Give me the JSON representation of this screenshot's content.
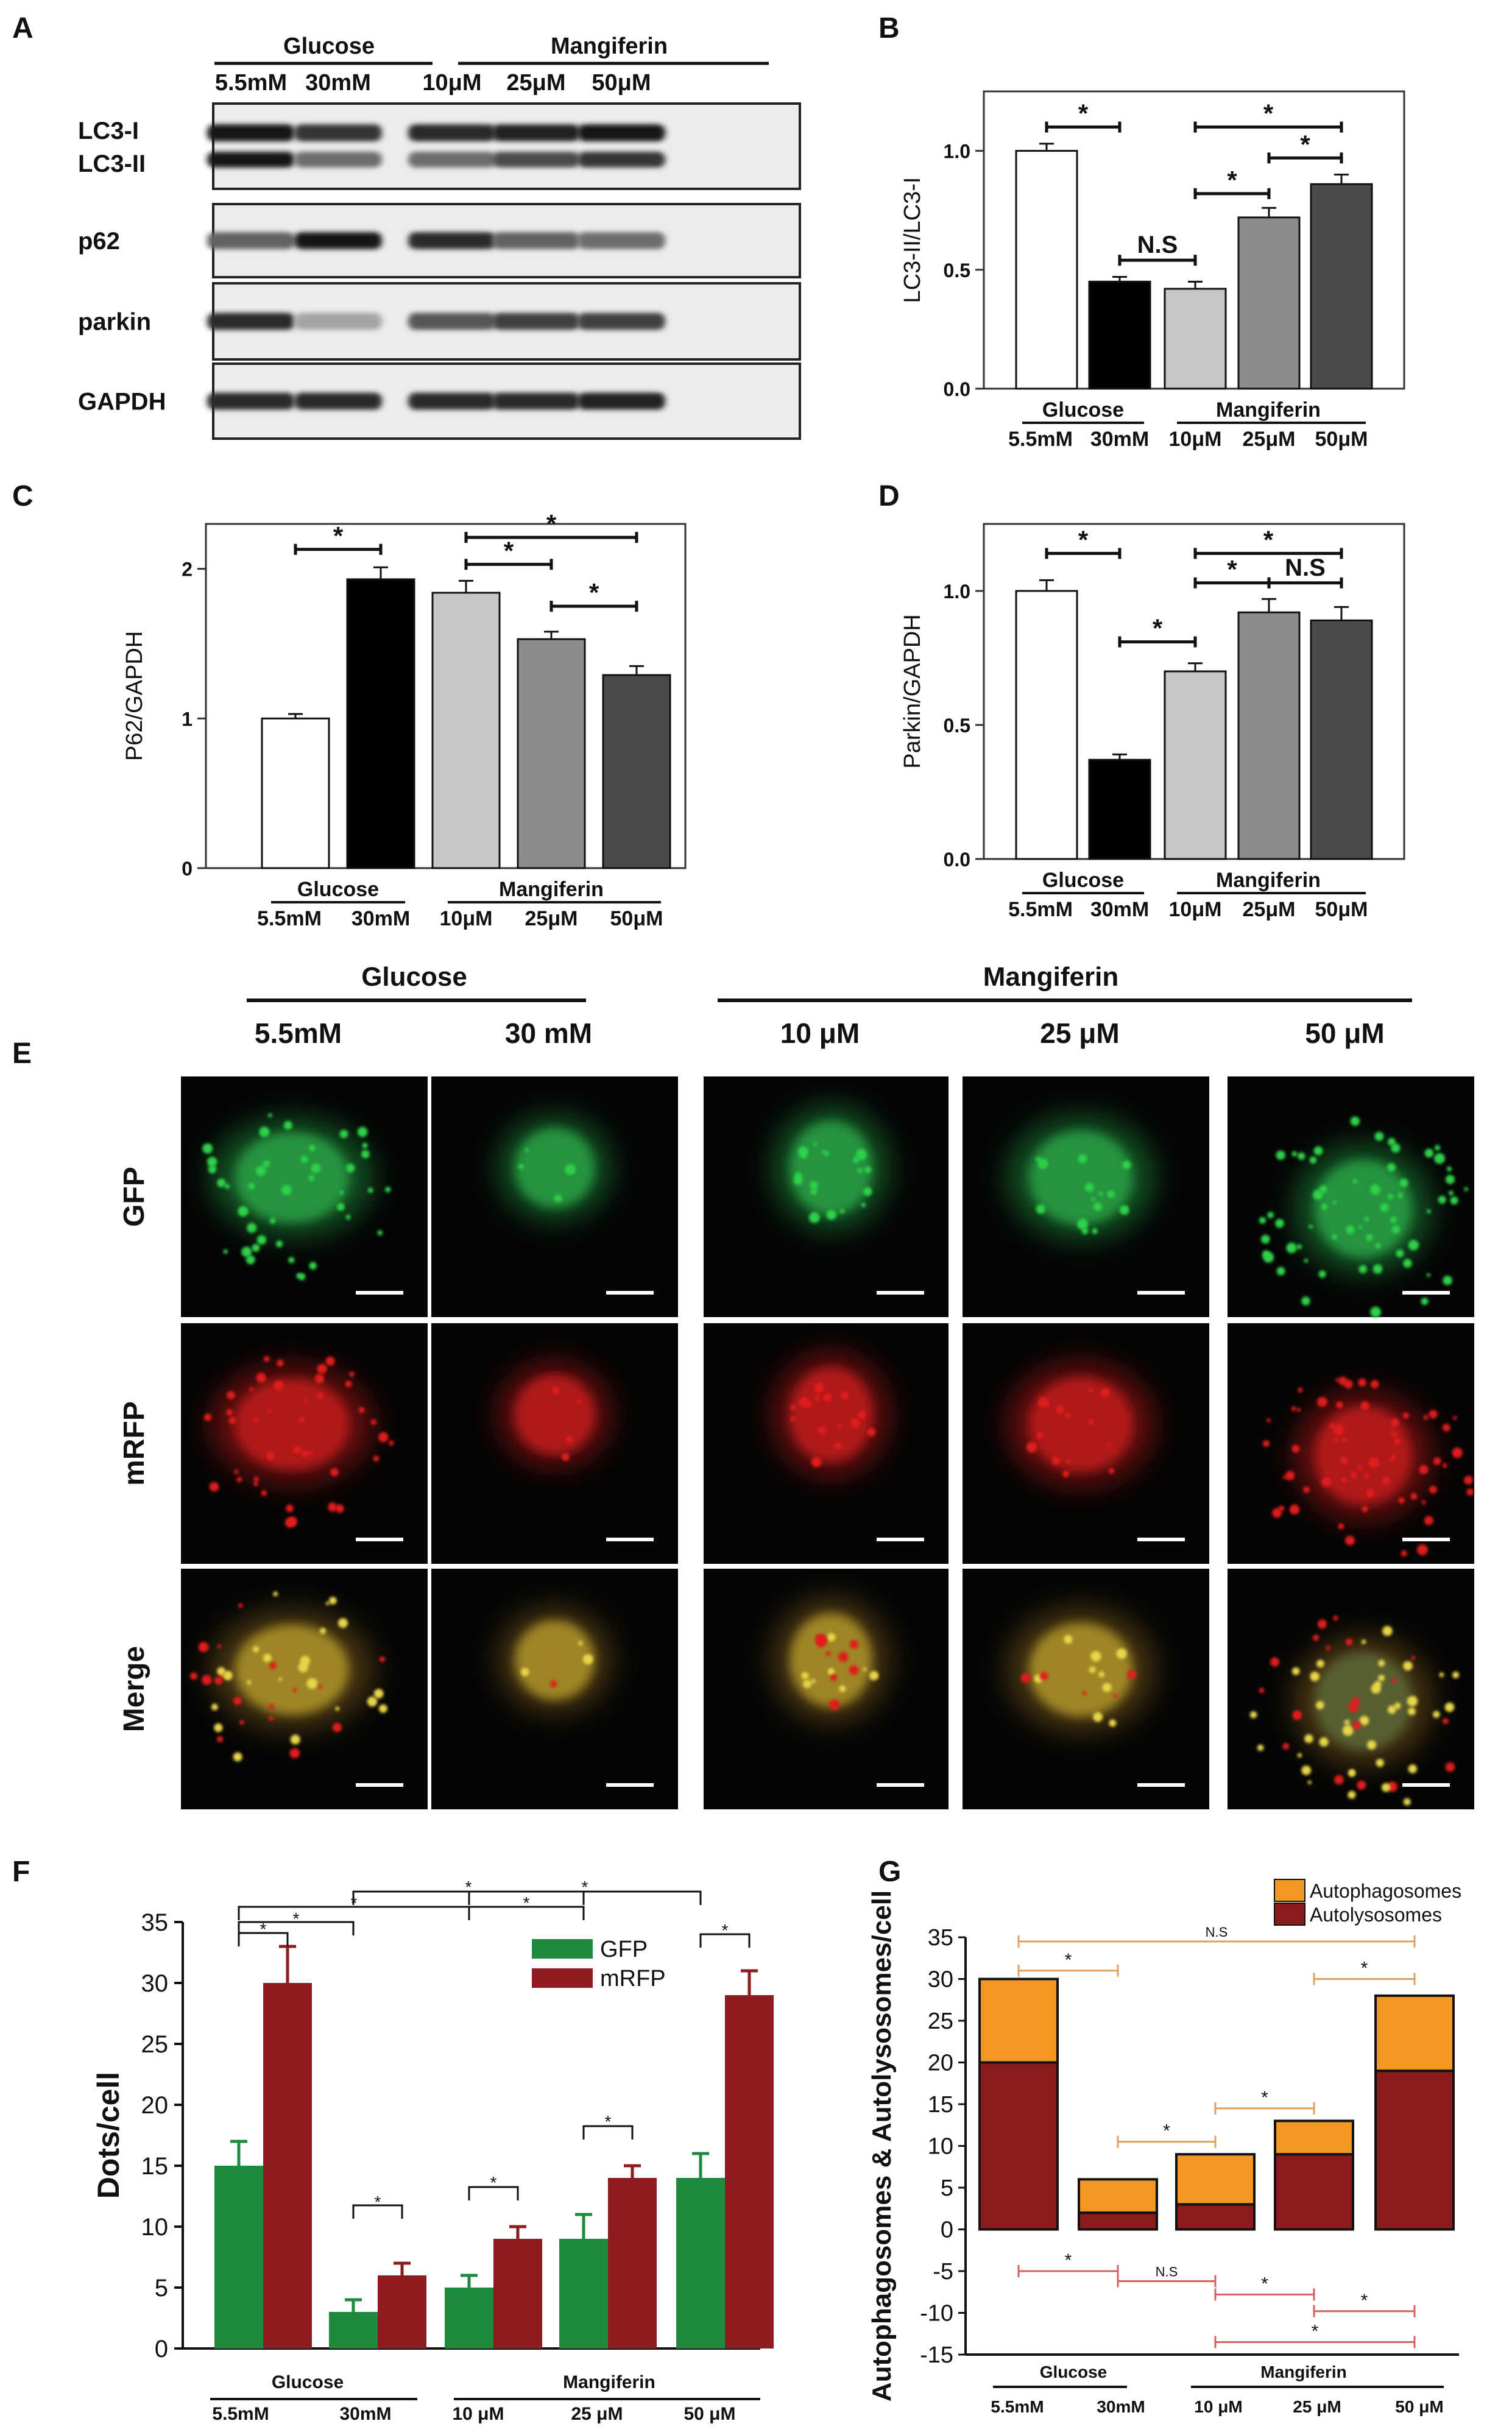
{
  "panel_labels": [
    "A",
    "B",
    "C",
    "D",
    "E",
    "F",
    "G"
  ],
  "colors": {
    "green_channel": "#2fd14a",
    "red_channel": "#e01e1e",
    "merge_yellow": "#e8d64a",
    "f_gfp": "#1e8a3e",
    "f_mrfp": "#8e1b1f",
    "g_autophagosome": "#f29624",
    "g_autolysosome": "#8a1a1c",
    "g_bracket_upper": "#e2a060",
    "g_bracket_lower": "#d46060",
    "black_bar": "#000000",
    "white_bar": "#ffffff"
  },
  "panel_a": {
    "group_glucose": "Glucose",
    "group_mangiferin": "Mangiferin",
    "lanes": [
      "5.5mM",
      "30mM",
      "10μM",
      "25μM",
      "50μM"
    ],
    "blots": [
      {
        "key": "lc3",
        "label_top": "LC3-I",
        "label_bottom": "LC3-II",
        "intensity": [
          0.95,
          0.8,
          0.85,
          0.9,
          0.95
        ],
        "lower_intensity": [
          0.95,
          0.55,
          0.55,
          0.7,
          0.8
        ]
      },
      {
        "key": "p62",
        "label_top": "p62",
        "intensity": [
          0.6,
          0.95,
          0.85,
          0.6,
          0.55
        ]
      },
      {
        "key": "parkin",
        "label_top": "parkin",
        "intensity": [
          0.85,
          0.3,
          0.65,
          0.75,
          0.75
        ]
      },
      {
        "key": "gapdh",
        "label_top": "GAPDH",
        "intensity": [
          0.85,
          0.85,
          0.85,
          0.85,
          0.9
        ]
      }
    ]
  },
  "panel_e": {
    "group_glucose": "Glucose",
    "group_mangiferin": "Mangiferin",
    "columns": [
      "5.5mM",
      "30 mM",
      "10 μM",
      "25 μM",
      "50 μM"
    ],
    "rows": [
      "GFP",
      "mRFP",
      "Merge"
    ]
  },
  "chart_data": [
    {
      "id": "B",
      "type": "bar",
      "ylabel": "LC3-II/LC3-I",
      "ylim": [
        0,
        1.25
      ],
      "yticks": [
        "0.0",
        "0.5",
        "1.0"
      ],
      "categories": [
        "5.5mM",
        "30mM",
        "10μM",
        "25μM",
        "50μM"
      ],
      "group_labels": [
        "Glucose",
        "Mangiferin"
      ],
      "values": [
        1.0,
        0.45,
        0.42,
        0.72,
        0.86
      ],
      "errors": [
        0.03,
        0.02,
        0.03,
        0.04,
        0.04
      ],
      "bar_colors": [
        "#ffffff",
        "#000000",
        "#c7c7c7",
        "#8c8c8c",
        "#4a4a4a"
      ],
      "significance": [
        {
          "from": 0,
          "to": 1,
          "y": 1.1,
          "text": "*"
        },
        {
          "from": 1,
          "to": 2,
          "y": 0.54,
          "text": "N.S"
        },
        {
          "from": 2,
          "to": 3,
          "y": 0.82,
          "text": "*"
        },
        {
          "from": 3,
          "to": 4,
          "y": 0.97,
          "text": "*"
        },
        {
          "from": 2,
          "to": 4,
          "y": 1.1,
          "text": "*"
        }
      ]
    },
    {
      "id": "C",
      "type": "bar",
      "ylabel": "P62/GAPDH",
      "ylim": [
        0,
        2.3
      ],
      "yticks": [
        "0",
        "1",
        "2"
      ],
      "categories": [
        "5.5mM",
        "30mM",
        "10μM",
        "25μM",
        "50μM"
      ],
      "group_labels": [
        "Glucose",
        "Mangiferin"
      ],
      "values": [
        1.0,
        1.93,
        1.84,
        1.53,
        1.29
      ],
      "errors": [
        0.03,
        0.08,
        0.08,
        0.05,
        0.06
      ],
      "bar_colors": [
        "#ffffff",
        "#000000",
        "#c7c7c7",
        "#8c8c8c",
        "#4a4a4a"
      ],
      "significance": [
        {
          "from": 0,
          "to": 1,
          "y": 2.13,
          "text": "*"
        },
        {
          "from": 2,
          "to": 3,
          "y": 2.03,
          "text": "*"
        },
        {
          "from": 2,
          "to": 4,
          "y": 2.21,
          "text": "*"
        },
        {
          "from": 3,
          "to": 4,
          "y": 1.75,
          "text": "*"
        }
      ]
    },
    {
      "id": "D",
      "type": "bar",
      "ylabel": "Parkin/GAPDH",
      "ylim": [
        0,
        1.25
      ],
      "yticks": [
        "0.0",
        "0.5",
        "1.0"
      ],
      "categories": [
        "5.5mM",
        "30mM",
        "10μM",
        "25μM",
        "50μM"
      ],
      "group_labels": [
        "Glucose",
        "Mangiferin"
      ],
      "values": [
        1.0,
        0.37,
        0.7,
        0.92,
        0.89
      ],
      "errors": [
        0.04,
        0.02,
        0.03,
        0.05,
        0.05
      ],
      "bar_colors": [
        "#ffffff",
        "#000000",
        "#c7c7c7",
        "#8c8c8c",
        "#4a4a4a"
      ],
      "significance": [
        {
          "from": 0,
          "to": 1,
          "y": 1.14,
          "text": "*"
        },
        {
          "from": 1,
          "to": 2,
          "y": 0.81,
          "text": "*"
        },
        {
          "from": 2,
          "to": 3,
          "y": 1.03,
          "text": "*"
        },
        {
          "from": 3,
          "to": 4,
          "y": 1.03,
          "text": "N.S"
        },
        {
          "from": 2,
          "to": 4,
          "y": 1.14,
          "text": "*"
        }
      ]
    },
    {
      "id": "F",
      "type": "bar",
      "ylabel": "Dots/cell",
      "ylim": [
        0,
        35
      ],
      "yticks": [
        "0",
        "5",
        "10",
        "15",
        "20",
        "25",
        "30",
        "35"
      ],
      "categories": [
        "5.5mM",
        "30mM",
        "10 μM",
        "25 μM",
        "50 μM"
      ],
      "group_labels": [
        "Glucose",
        "Mangiferin"
      ],
      "series": [
        {
          "name": "GFP",
          "values": [
            15,
            3,
            5,
            9,
            14
          ],
          "errors": [
            2,
            1,
            1,
            2,
            2
          ],
          "color": "#1e8a3e"
        },
        {
          "name": "mRFP",
          "values": [
            30,
            6,
            9,
            14,
            29
          ],
          "errors": [
            3,
            1,
            1,
            1,
            2
          ],
          "color": "#8e1b1f"
        }
      ],
      "significance_labels": [
        "*",
        "*",
        "*",
        "*",
        "*",
        "*",
        "*",
        "*",
        "*",
        "*"
      ]
    },
    {
      "id": "G",
      "type": "bar",
      "stacked": true,
      "ylabel": "Autophagosomes & Autolysosomes/cell",
      "ylim": [
        -15,
        35
      ],
      "yticks": [
        "-15",
        "-10",
        "-5",
        "0",
        "5",
        "10",
        "15",
        "20",
        "25",
        "30",
        "35"
      ],
      "categories": [
        "5.5mM",
        "30mM",
        "10 μM",
        "25 μM",
        "50 μM"
      ],
      "group_labels": [
        "Glucose",
        "Mangiferin"
      ],
      "series": [
        {
          "name": "Autophagosomes",
          "values": [
            10,
            4,
            6,
            4,
            9
          ],
          "color": "#f29624"
        },
        {
          "name": "Autolysosomes",
          "values": [
            20,
            2,
            3,
            9,
            19
          ],
          "color": "#8a1a1c"
        }
      ],
      "upper_brackets": [
        {
          "from": 0,
          "to": 4,
          "y": 34.5,
          "text": "N.S"
        },
        {
          "from": 0,
          "to": 1,
          "y": 31,
          "text": "*"
        },
        {
          "from": 3,
          "to": 4,
          "y": 30,
          "text": "*"
        },
        {
          "from": 2,
          "to": 3,
          "y": 14.5,
          "text": "*"
        },
        {
          "from": 1,
          "to": 2,
          "y": 10.5,
          "text": "*"
        }
      ],
      "lower_brackets": [
        {
          "from": 0,
          "to": 1,
          "y": -5,
          "text": "*"
        },
        {
          "from": 1,
          "to": 2,
          "y": -6.2,
          "text": "N.S"
        },
        {
          "from": 2,
          "to": 3,
          "y": -7.8,
          "text": "*"
        },
        {
          "from": 3,
          "to": 4,
          "y": -9.8,
          "text": "*"
        },
        {
          "from": 2,
          "to": 4,
          "y": -13.5,
          "text": "*"
        }
      ]
    }
  ]
}
